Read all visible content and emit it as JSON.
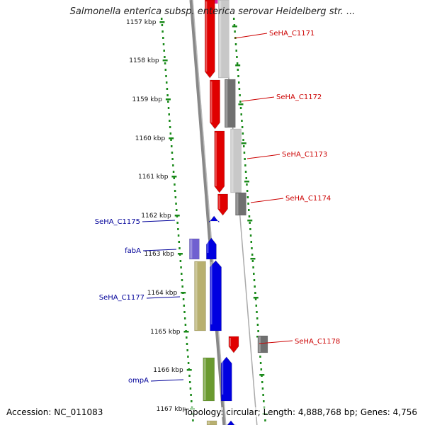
{
  "title": "Salmonella enterica subsp. enterica serovar Heidelberg str. ...",
  "footer": {
    "accession_label": "Accession:",
    "accession": "NC_011083",
    "topology_label": "Topology:",
    "topology": "circular",
    "length_label": "Length:",
    "length": "4,888,768 bp",
    "genes_label": "Genes:",
    "genes": "4,756"
  },
  "ruler": {
    "unit": "kbp",
    "ticks": [
      "1157 kbp",
      "1158 kbp",
      "1159 kbp",
      "1160 kbp",
      "1161 kbp",
      "1162 kbp",
      "1163 kbp",
      "1164 kbp",
      "1165 kbp",
      "1166 kbp",
      "1167 kbp"
    ]
  },
  "colors": {
    "forward_strand": "#e00000",
    "reverse_strand": "#0000e0",
    "forward_label": "#cc0000",
    "reverse_label": "#000099",
    "backbone": "#888888",
    "ruler_dots": "#1a8a1a",
    "cog_grey_light": "#c8c8c8",
    "cog_grey_dark": "#707070",
    "cog_purple": "#7060d0",
    "cog_khaki": "#b8b070",
    "cog_olive": "#6a9a30",
    "cog_pink": "#e020a0"
  },
  "genes": [
    {
      "name": "SeHA_C1171",
      "strand": "+"
    },
    {
      "name": "SeHA_C1172",
      "strand": "+"
    },
    {
      "name": "SeHA_C1173",
      "strand": "+"
    },
    {
      "name": "SeHA_C1174",
      "strand": "+"
    },
    {
      "name": "SeHA_C1175",
      "strand": "-"
    },
    {
      "name": "fabA",
      "strand": "-"
    },
    {
      "name": "SeHA_C1177",
      "strand": "-"
    },
    {
      "name": "SeHA_C1178",
      "strand": "+"
    },
    {
      "name": "ompA",
      "strand": "-"
    }
  ]
}
